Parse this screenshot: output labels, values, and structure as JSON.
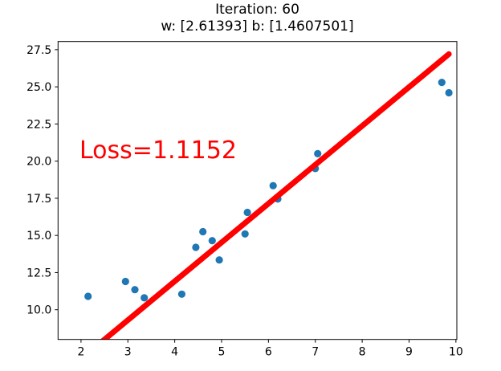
{
  "chart_data": {
    "type": "scatter",
    "title": "Iteration: 60",
    "subtitle": "w: [2.61393] b: [1.4607501]",
    "annotation": {
      "text": "Loss=1.1152",
      "color": "#ff0000"
    },
    "points": [
      [
        2.15,
        10.9
      ],
      [
        2.95,
        11.9
      ],
      [
        3.15,
        11.35
      ],
      [
        3.35,
        10.8
      ],
      [
        4.15,
        11.05
      ],
      [
        4.45,
        14.2
      ],
      [
        4.6,
        15.25
      ],
      [
        4.8,
        14.65
      ],
      [
        4.95,
        13.35
      ],
      [
        5.5,
        15.1
      ],
      [
        5.55,
        16.55
      ],
      [
        6.1,
        18.35
      ],
      [
        6.2,
        17.45
      ],
      [
        7.0,
        19.5
      ],
      [
        7.05,
        20.5
      ],
      [
        9.7,
        25.3
      ],
      [
        9.85,
        24.6
      ]
    ],
    "point_color": "#1f77b4",
    "fit_line": {
      "w": 2.61393,
      "b": 1.4607501,
      "x_start": 2.15,
      "x_end": 9.85,
      "color": "#ff0000",
      "width": 7
    },
    "x_ticks": [
      "2",
      "3",
      "4",
      "5",
      "6",
      "7",
      "8",
      "9",
      "10"
    ],
    "y_ticks": [
      "10.0",
      "12.5",
      "15.0",
      "17.5",
      "20.0",
      "22.5",
      "25.0",
      "27.5"
    ],
    "xlim": [
      1.51,
      10.02
    ],
    "ylim": [
      8.0,
      28.05
    ],
    "xlabel": "",
    "ylabel": "",
    "grid": false,
    "legend": null,
    "axis_color": "#000000"
  }
}
